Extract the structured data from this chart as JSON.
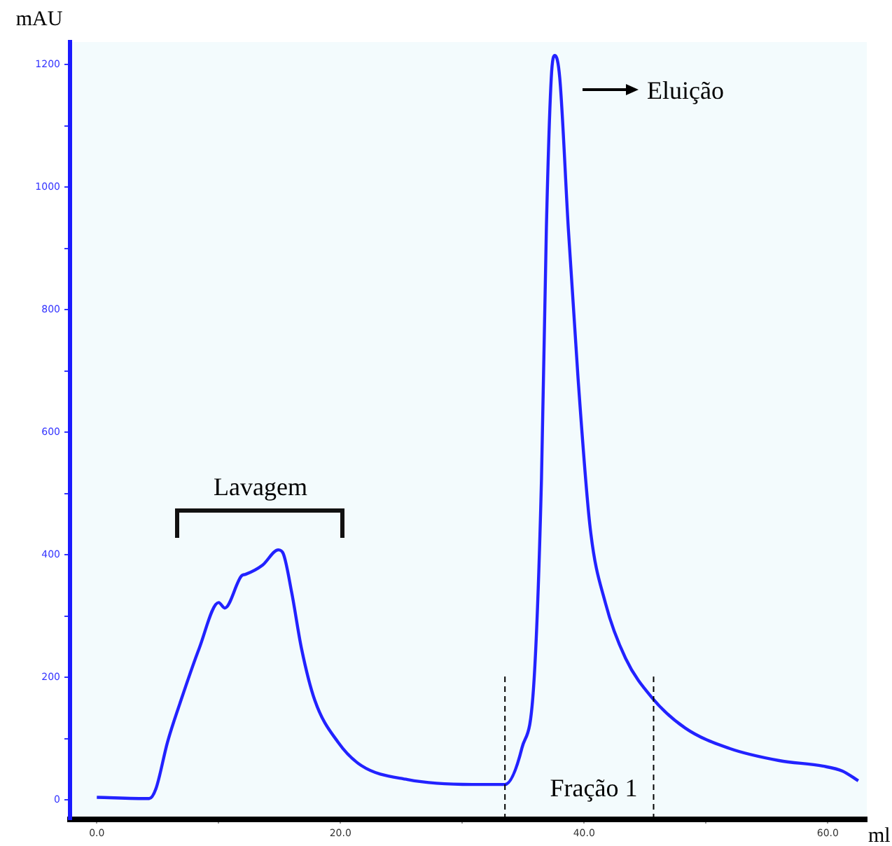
{
  "chart_data": {
    "type": "line",
    "xlabel": "ml",
    "ylabel": "mAU",
    "xlim": [
      -2.2,
      63.2
    ],
    "ylim": [
      -32,
      1237
    ],
    "xticks": [
      {
        "value": 0,
        "label": "0.0"
      },
      {
        "value": 10,
        "label": null
      },
      {
        "value": 20,
        "label": "20.0"
      },
      {
        "value": 30,
        "label": null
      },
      {
        "value": 40,
        "label": "40.0"
      },
      {
        "value": 50,
        "label": null
      },
      {
        "value": 60,
        "label": "60.0"
      }
    ],
    "yticks": [
      0,
      {
        "value": 100,
        "label": null
      },
      200,
      {
        "value": 300,
        "label": null
      },
      400,
      {
        "value": 500,
        "label": null
      },
      600,
      {
        "value": 700,
        "label": null
      },
      800,
      {
        "value": 900,
        "label": null
      },
      1000,
      {
        "value": 1100,
        "label": null
      },
      1200
    ],
    "grid": false,
    "legend": false,
    "marker": "none",
    "line_style": "solid",
    "series": [
      {
        "color": "#2222ff",
        "x": [
          0,
          4.3,
          4.85,
          5.8,
          6.9,
          8.4,
          10.0,
          10.5,
          11.9,
          12.2,
          13.6,
          14.9,
          15.3,
          16.0,
          16.8,
          17.9,
          19.8,
          21.7,
          25.5,
          30.8,
          33.5,
          34.9,
          35.9,
          36.5,
          36.9,
          37.3,
          37.6,
          38.0,
          38.7,
          39.5,
          40.5,
          41.75,
          43.4,
          45.6,
          48.3,
          51.9,
          56.0,
          59.6,
          61.2,
          62.5
        ],
        "values": [
          4,
          2,
          18,
          94,
          162,
          247,
          322,
          313,
          366,
          368,
          383,
          408,
          402,
          338,
          247,
          162,
          94,
          56,
          33,
          25,
          25,
          85,
          199,
          525,
          933,
          1178,
          1215,
          1178,
          933,
          688,
          443,
          321,
          231,
          166,
          117,
          84,
          64,
          55,
          47,
          31
        ]
      }
    ],
    "ref_lines": [
      {
        "axis": "x",
        "value": 33.5,
        "color": "#000000",
        "line_style": "dashed"
      },
      {
        "axis": "x",
        "value": 45.7,
        "color": "#000000",
        "line_style": "dashed"
      }
    ],
    "annotations": [
      "Lavagem",
      "Eluição",
      "Fração 1"
    ]
  }
}
